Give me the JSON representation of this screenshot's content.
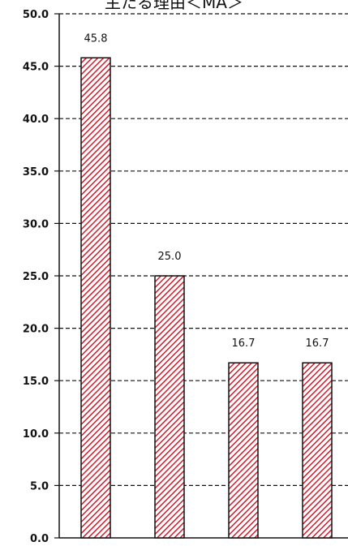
{
  "chart_data": {
    "type": "bar",
    "title": "主たる理由＜MA＞",
    "categories": [
      "",
      "",
      "",
      ""
    ],
    "values": [
      45.8,
      25.0,
      16.7,
      16.7
    ],
    "data_labels": [
      "45.8",
      "25.0",
      "16.7",
      "16.7"
    ],
    "ylim": [
      0,
      50
    ],
    "yticks": [
      "0.0",
      "5.0",
      "10.0",
      "15.0",
      "20.0",
      "25.0",
      "30.0",
      "35.0",
      "40.0",
      "45.0",
      "50.0"
    ],
    "grid": true,
    "bar_color": "#d7192a",
    "bar_pattern": "diagonal-hatch"
  }
}
